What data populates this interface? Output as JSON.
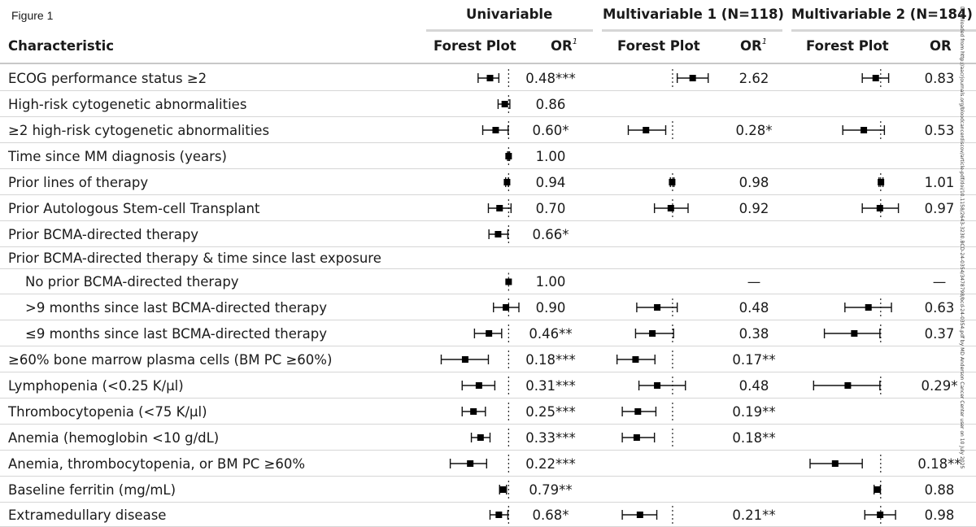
{
  "figure_label": "Figure 1",
  "groups": [
    {
      "label": "Univariable"
    },
    {
      "label": "Multivariable 1 (N=118)"
    },
    {
      "label": "Multivariable 2 (N=184)"
    }
  ],
  "headers": {
    "characteristic": "Characteristic",
    "forest_plot": "Forest Plot",
    "or": "OR",
    "or_footnote": "1"
  },
  "side_text": "Downloaded from http://aacrjournals.org/bloodcancerdiscov/article-pdf/doi/10.1158/2643-3230.BCD-24-0354/3478798/bcd-24-0354.pdf by MD Anderson Cancer Center user on 10 July 2025",
  "rows": [
    {
      "label": "ECOG performance status ≥2",
      "indent": false,
      "or1": "0.48***",
      "or2": "2.62",
      "or3": "0.83",
      "f1": {
        "lo": 0.3,
        "est": 0.48,
        "hi": 0.68
      },
      "f2": {
        "lo": 1.25,
        "est": 2.62,
        "hi": 5.5
      },
      "f3": {
        "lo": 0.5,
        "est": 0.83,
        "hi": 1.35
      }
    },
    {
      "label": "High-risk cytogenetic abnormalities",
      "indent": false,
      "or1": "0.86",
      "or2": "",
      "or3": "",
      "f1": {
        "lo": 0.66,
        "est": 0.86,
        "hi": 1.05
      },
      "f2": null,
      "f3": null
    },
    {
      "label": "≥2 high-risk cytogenetic abnormalities",
      "indent": false,
      "or1": "0.60*",
      "or2": "0.28*",
      "or3": "0.53",
      "f1": {
        "lo": 0.36,
        "est": 0.6,
        "hi": 0.98
      },
      "f2": {
        "lo": 0.12,
        "est": 0.28,
        "hi": 0.72
      },
      "f3": {
        "lo": 0.24,
        "est": 0.53,
        "hi": 1.15
      }
    },
    {
      "label": "Time since MM diagnosis (years)",
      "indent": false,
      "or1": "1.00",
      "or2": "",
      "or3": "",
      "f1": {
        "lo": 0.96,
        "est": 1.0,
        "hi": 1.04
      },
      "f2": null,
      "f3": null
    },
    {
      "label": "Prior lines of therapy",
      "indent": false,
      "or1": "0.94",
      "or2": "0.98",
      "or3": "1.01",
      "f1": {
        "lo": 0.89,
        "est": 0.94,
        "hi": 0.99
      },
      "f2": {
        "lo": 0.9,
        "est": 0.98,
        "hi": 1.07
      },
      "f3": {
        "lo": 0.94,
        "est": 1.01,
        "hi": 1.09
      }
    },
    {
      "label": "Prior Autologous Stem-cell Transplant",
      "indent": false,
      "or1": "0.70",
      "or2": "0.92",
      "or3": "0.97",
      "f1": {
        "lo": 0.45,
        "est": 0.7,
        "hi": 1.1
      },
      "f2": {
        "lo": 0.42,
        "est": 0.92,
        "hi": 2.1
      },
      "f3": {
        "lo": 0.5,
        "est": 0.97,
        "hi": 1.95
      }
    },
    {
      "label": "Prior BCMA-directed therapy",
      "indent": false,
      "or1": "0.66*",
      "or2": "",
      "or3": "",
      "f1": {
        "lo": 0.46,
        "est": 0.66,
        "hi": 0.97
      },
      "f2": null,
      "f3": null
    },
    {
      "label": "Prior BCMA-directed therapy & time since last exposure",
      "indent": false,
      "or1": "",
      "or2": "",
      "or3": "",
      "f1": null,
      "f2": null,
      "f3": null
    },
    {
      "label": "No prior BCMA-directed therapy",
      "indent": true,
      "or1": "1.00",
      "or2": "—",
      "or3": "—",
      "f1": {
        "lo": 1.0,
        "est": 1.0,
        "hi": 1.0
      },
      "f2": null,
      "f3": null
    },
    {
      "label": ">9 months since last BCMA-directed therapy",
      "indent": true,
      "or1": "0.90",
      "or2": "0.48",
      "or3": "0.63",
      "f1": {
        "lo": 0.55,
        "est": 0.9,
        "hi": 1.5
      },
      "f2": {
        "lo": 0.18,
        "est": 0.48,
        "hi": 1.25
      },
      "f3": {
        "lo": 0.26,
        "est": 0.63,
        "hi": 1.5
      }
    },
    {
      "label": "≤9 months since last BCMA-directed therapy",
      "indent": true,
      "or1": "0.46**",
      "or2": "0.38",
      "or3": "0.37",
      "f1": {
        "lo": 0.26,
        "est": 0.46,
        "hi": 0.76
      },
      "f2": {
        "lo": 0.17,
        "est": 0.38,
        "hi": 1.05
      },
      "f3": {
        "lo": 0.12,
        "est": 0.37,
        "hi": 0.97
      }
    },
    {
      "label": "≥60% bone marrow plasma cells (BM PC ≥60%)",
      "indent": false,
      "or1": "0.18***",
      "or2": "0.17**",
      "or3": "",
      "f1": {
        "lo": 0.07,
        "est": 0.18,
        "hi": 0.45
      },
      "f2": {
        "lo": 0.07,
        "est": 0.17,
        "hi": 0.43
      },
      "f3": null
    },
    {
      "label": "Lymphopenia (<0.25 K/µl)",
      "indent": false,
      "or1": "0.31***",
      "or2": "0.48",
      "or3": "0.29*",
      "f1": {
        "lo": 0.16,
        "est": 0.31,
        "hi": 0.58
      },
      "f2": {
        "lo": 0.2,
        "est": 0.48,
        "hi": 1.85
      },
      "f3": {
        "lo": 0.08,
        "est": 0.29,
        "hi": 0.97
      }
    },
    {
      "label": "Thrombocytopenia (<75 K/µl)",
      "indent": false,
      "or1": "0.25***",
      "or2": "0.19**",
      "or3": "",
      "f1": {
        "lo": 0.16,
        "est": 0.25,
        "hi": 0.4
      },
      "f2": {
        "lo": 0.09,
        "est": 0.19,
        "hi": 0.45
      },
      "f3": null
    },
    {
      "label": "Anemia (hemoglobin <10 g/dL)",
      "indent": false,
      "or1": "0.33***",
      "or2": "0.18**",
      "or3": "",
      "f1": {
        "lo": 0.23,
        "est": 0.33,
        "hi": 0.48
      },
      "f2": {
        "lo": 0.09,
        "est": 0.18,
        "hi": 0.42
      },
      "f3": null
    },
    {
      "label": "Anemia, thrombocytopenia, or BM PC ≥60%",
      "indent": false,
      "or1": "0.22***",
      "or2": "",
      "or3": "0.18**",
      "f1": {
        "lo": 0.1,
        "est": 0.22,
        "hi": 0.42
      },
      "f2": null,
      "f3": {
        "lo": 0.07,
        "est": 0.18,
        "hi": 0.5
      }
    },
    {
      "label": "Baseline ferritin (mg/mL)",
      "indent": false,
      "or1": "0.79**",
      "or2": "",
      "or3": "0.88",
      "f1": {
        "lo": 0.7,
        "est": 0.79,
        "hi": 0.92
      },
      "f2": null,
      "f3": {
        "lo": 0.78,
        "est": 0.88,
        "hi": 0.99
      }
    },
    {
      "label": "Extramedullary disease",
      "indent": false,
      "or1": "0.68*",
      "or2": "0.21**",
      "or3": "0.98",
      "f1": {
        "lo": 0.48,
        "est": 0.68,
        "hi": 0.97
      },
      "f2": {
        "lo": 0.09,
        "est": 0.21,
        "hi": 0.47
      },
      "f3": {
        "lo": 0.55,
        "est": 0.98,
        "hi": 1.75
      }
    }
  ]
}
